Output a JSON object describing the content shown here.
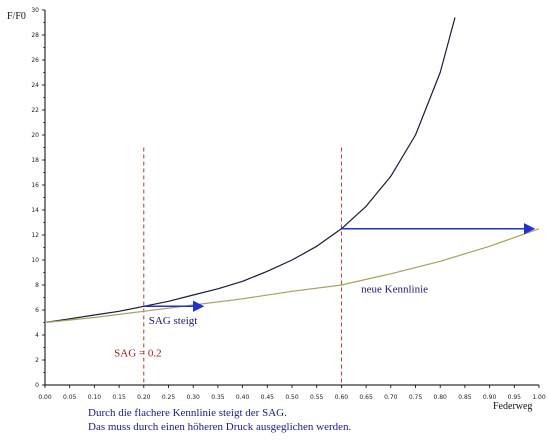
{
  "chart_data": {
    "type": "line",
    "xlabel": "Federweg",
    "ylabel": "F/F0",
    "xlim": [
      0,
      1
    ],
    "ylim": [
      0,
      30
    ],
    "x_ticks": [
      "0.00",
      "0.05",
      "0.10",
      "0.15",
      "0.20",
      "0.25",
      "0.30",
      "0.35",
      "0.40",
      "0.45",
      "0.50",
      "0.55",
      "0.60",
      "0.65",
      "0.70",
      "0.75",
      "0.80",
      "0.85",
      "0.90",
      "0.95",
      "1.00"
    ],
    "y_ticks": [
      "0",
      "2",
      "4",
      "6",
      "8",
      "10",
      "12",
      "14",
      "16",
      "18",
      "20",
      "22",
      "24",
      "26",
      "28",
      "30"
    ],
    "series": [
      {
        "color": "#1a1a3a",
        "x": [
          0,
          0.05,
          0.1,
          0.15,
          0.2,
          0.25,
          0.3,
          0.35,
          0.4,
          0.45,
          0.5,
          0.55,
          0.6,
          0.65,
          0.7,
          0.75,
          0.8,
          0.83
        ],
        "y": [
          5.0,
          5.3,
          5.6,
          5.9,
          6.3,
          6.7,
          7.2,
          7.7,
          8.3,
          9.1,
          10.0,
          11.1,
          12.5,
          14.3,
          16.7,
          20.0,
          25.0,
          29.4
        ]
      },
      {
        "name": "neue Kennlinie",
        "color": "#a8a060",
        "x": [
          0,
          0.1,
          0.2,
          0.3,
          0.4,
          0.5,
          0.6,
          0.7,
          0.8,
          0.9,
          1.0
        ],
        "y": [
          5.0,
          5.4,
          5.9,
          6.4,
          6.9,
          7.5,
          8.0,
          8.9,
          9.9,
          11.1,
          12.5
        ]
      }
    ],
    "vlines": [
      {
        "x": 0.2,
        "color": "#993322"
      },
      {
        "x": 0.6,
        "color": "#993322"
      }
    ],
    "arrows": [
      {
        "x1": 0.2,
        "x2": 0.32,
        "y": 6.3,
        "color": "#2233cc"
      },
      {
        "x1": 0.6,
        "x2": 0.99,
        "y": 12.5,
        "color": "#2233cc"
      }
    ],
    "annotations": [
      {
        "text": "SAG steigt",
        "x": 0.21,
        "y": 4.9,
        "color": "#1a1a6a"
      },
      {
        "text": "SAG  =  0.2",
        "x": 0.14,
        "y": 2.3,
        "color": "#992222"
      },
      {
        "text": "neue Kennlinie",
        "x": 0.64,
        "y": 7.4,
        "color": "#1a1a6a"
      }
    ]
  },
  "caption": {
    "line1": "Durch die flachere Kennlinie steigt der SAG.",
    "line2": "Das muss durch einen höheren Druck ausgeglichen werden.",
    "color": "#1a1a8a"
  }
}
